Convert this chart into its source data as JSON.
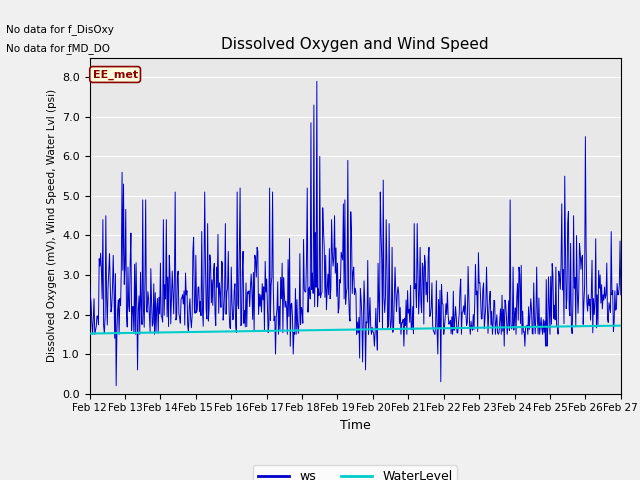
{
  "title": "Dissolved Oxygen and Wind Speed",
  "ylabel": "Dissolved Oxygen (mV), Wind Speed, Water Lvl (psi)",
  "xlabel": "Time",
  "text_no_data_1": "No data for f_DisOxy",
  "text_no_data_2": "No data for f̲MD_DO",
  "annotation_label": "EE_met",
  "ylim": [
    0.0,
    8.5
  ],
  "yticks": [
    0.0,
    1.0,
    2.0,
    3.0,
    4.0,
    5.0,
    6.0,
    7.0,
    8.0
  ],
  "xlim": [
    0,
    360
  ],
  "xtick_labels": [
    "Feb 12",
    "Feb 13",
    "Feb 14",
    "Feb 15",
    "Feb 16",
    "Feb 17",
    "Feb 18",
    "Feb 19",
    "Feb 20",
    "Feb 21",
    "Feb 22",
    "Feb 23",
    "Feb 24",
    "Feb 25",
    "Feb 26",
    "Feb 27"
  ],
  "xtick_positions": [
    0,
    24,
    48,
    72,
    96,
    120,
    144,
    168,
    192,
    216,
    240,
    264,
    288,
    312,
    336,
    360
  ],
  "ws_color": "#0000cc",
  "water_color": "#00cccc",
  "fig_facecolor": "#f0f0f0",
  "ax_facecolor": "#e8e8e8",
  "legend_ws": "ws",
  "legend_wl": "WaterLevel",
  "seed": 42
}
